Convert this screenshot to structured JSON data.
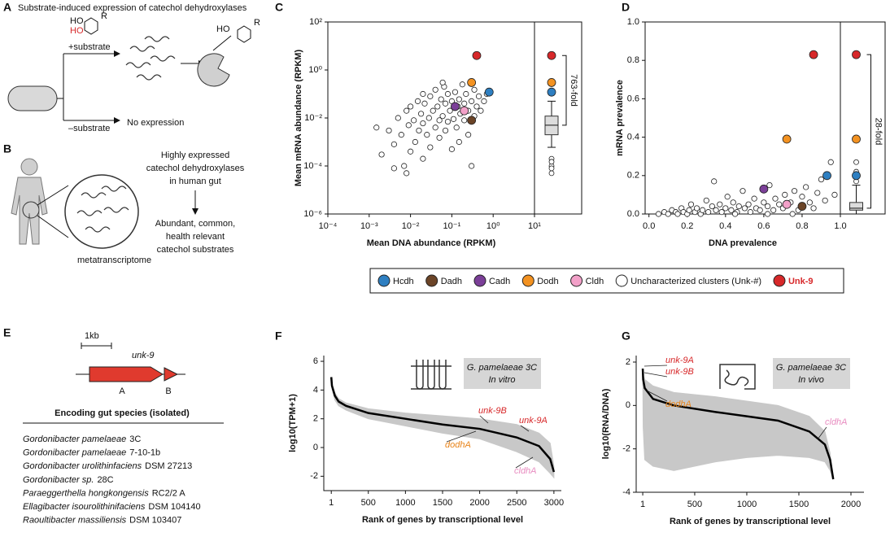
{
  "panel_labels": [
    "A",
    "B",
    "C",
    "D",
    "E",
    "F",
    "G"
  ],
  "panel_a": {
    "title": "Substrate-induced expression of catechol dehydroxylases",
    "plus": "+substrate",
    "minus": "–substrate",
    "no_expression": "No expression",
    "hydroxyl": "HO",
    "group": "R"
  },
  "panel_b": {
    "text1": [
      "Highly expressed",
      "catechol dehydroxylases",
      "in human gut"
    ],
    "text2": [
      "Abundant, common,",
      "health relevant",
      "catechol substrates"
    ],
    "caption": "metatranscriptome"
  },
  "panel_e": {
    "scale": "1kb",
    "gene": "unk-9",
    "parts": [
      "A",
      "B"
    ],
    "heading": "Encoding gut species (isolated)",
    "species": [
      {
        "name": "Gordonibacter pamelaeae",
        "strain": "3C"
      },
      {
        "name": "Gordonibacter pamelaeae",
        "strain": "7-10-1b"
      },
      {
        "name": "Gordonibacter urolithinfaciens",
        "strain": "DSM 27213"
      },
      {
        "name": "Gordonibacter sp.",
        "strain": "28C"
      },
      {
        "name": "Paraeggerthella hongkongensis",
        "strain": "RC2/2 A"
      },
      {
        "name": "Ellagibacter isourolithinifaciens",
        "strain": "DSM 104140"
      },
      {
        "name": "Raoultibacter massiliensis",
        "strain": "DSM 103407"
      }
    ]
  },
  "chart_data": [
    {
      "type": "scatter",
      "x_label": "Mean DNA abundance (RPKM)",
      "y_label": "Mean mRNA abundance (RPKM)",
      "xscale": "log",
      "yscale": "log",
      "xlim": [
        0.0001,
        10
      ],
      "ylim": [
        1e-06,
        100
      ],
      "xticks": [
        {
          "value": 0.0001,
          "label": "10⁻⁴"
        },
        {
          "value": 0.001,
          "label": "10⁻³"
        },
        {
          "value": 0.01,
          "label": "10⁻²"
        },
        {
          "value": 0.1,
          "label": "10⁻¹"
        },
        {
          "value": 1,
          "label": "10⁰"
        },
        {
          "value": 10,
          "label": "10¹"
        }
      ],
      "yticks": [
        {
          "value": 1e-06,
          "label": "10⁻⁶"
        },
        {
          "value": 0.0001,
          "label": "10⁻⁴"
        },
        {
          "value": 0.01,
          "label": "10⁻²"
        },
        {
          "value": 1,
          "label": "10⁰"
        },
        {
          "value": 100,
          "label": "10²"
        }
      ],
      "series": [
        {
          "name": "Hcdh",
          "color": "#2e7fc1",
          "x": [
            0.8
          ],
          "values": [
            0.12
          ]
        },
        {
          "name": "Dadh",
          "color": "#6b4427",
          "x": [
            0.3
          ],
          "values": [
            0.008
          ]
        },
        {
          "name": "Cadh",
          "color": "#7b3f98",
          "x": [
            0.12
          ],
          "values": [
            0.03
          ]
        },
        {
          "name": "Dodh",
          "color": "#f39221",
          "x": [
            0.3
          ],
          "values": [
            0.3
          ]
        },
        {
          "name": "Cldh",
          "color": "#f2a0c8",
          "x": [
            0.2
          ],
          "values": [
            0.02
          ]
        },
        {
          "name": "Uncharacterized clusters (Unk-#)",
          "color": "#ffffff",
          "x": [
            0.002,
            0.003,
            0.004,
            0.005,
            0.006,
            0.007,
            0.008,
            0.009,
            0.01,
            0.01,
            0.012,
            0.013,
            0.015,
            0.016,
            0.018,
            0.02,
            0.02,
            0.022,
            0.025,
            0.028,
            0.03,
            0.03,
            0.035,
            0.04,
            0.04,
            0.045,
            0.05,
            0.05,
            0.055,
            0.06,
            0.065,
            0.07,
            0.07,
            0.08,
            0.08,
            0.09,
            0.1,
            0.1,
            0.11,
            0.12,
            0.13,
            0.14,
            0.15,
            0.16,
            0.18,
            0.2,
            0.2,
            0.22,
            0.25,
            0.25,
            0.3,
            0.3,
            0.35,
            0.35,
            0.4,
            0.45,
            0.5,
            0.6,
            0.7,
            0.008,
            0.004,
            0.0015,
            0.02,
            0.06,
            0.15
          ],
          "values": [
            0.0003,
            0.003,
            0.0008,
            0.01,
            0.002,
            0.0001,
            0.02,
            0.005,
            0.0004,
            0.03,
            0.008,
            0.001,
            0.05,
            0.003,
            0.015,
            0.0002,
            0.006,
            0.04,
            0.002,
            0.01,
            0.08,
            0.0006,
            0.02,
            0.004,
            0.15,
            0.03,
            0.008,
            0.0015,
            0.06,
            0.012,
            0.2,
            0.003,
            0.04,
            0.007,
            0.1,
            0.02,
            0.0005,
            0.05,
            0.009,
            0.12,
            0.004,
            0.03,
            0.06,
            0.015,
            0.25,
            0.008,
            0.04,
            0.1,
            0.002,
            0.02,
            0.05,
            0.0001,
            0.15,
            0.012,
            0.03,
            0.08,
            0.02,
            0.05,
            0.1,
            5e-05,
            8e-05,
            0.004,
            0.1,
            0.3,
            0.001
          ]
        },
        {
          "name": "Unk-9",
          "color": "#d7282a",
          "emphasis": true,
          "x": [
            0.4
          ],
          "values": [
            4
          ]
        }
      ],
      "box": {
        "q1": 0.002,
        "median": 0.005,
        "q3": 0.012,
        "whisker_low": 0.0006,
        "whisker_high": 0.05,
        "outliers": [
          0.0001,
          5e-05,
          8e-05,
          0.0002,
          0.00015
        ],
        "highlights": [
          {
            "color": "#d7282a",
            "value": 4
          },
          {
            "color": "#f39221",
            "value": 0.3
          },
          {
            "color": "#2e7fc1",
            "value": 0.12
          }
        ]
      },
      "bracket_label": "763-fold"
    },
    {
      "type": "scatter",
      "x_label": "DNA prevalence",
      "y_label": "mRNA prevalence",
      "xlim": [
        -0.02,
        1.0
      ],
      "ylim": [
        0,
        1.0
      ],
      "xticks": [
        {
          "value": 0,
          "label": "0.0"
        },
        0.2,
        0.4,
        0.6,
        0.8,
        {
          "value": 1,
          "label": "1.0"
        }
      ],
      "yticks": [
        {
          "value": 0,
          "label": "0.0"
        },
        0.2,
        0.4,
        0.6,
        0.8,
        {
          "value": 1,
          "label": "1.0"
        }
      ],
      "series": [
        {
          "color": "#2e7fc1",
          "x": [
            0.93
          ],
          "values": [
            0.2
          ]
        },
        {
          "color": "#6b4427",
          "x": [
            0.8
          ],
          "values": [
            0.04
          ]
        },
        {
          "color": "#7b3f98",
          "x": [
            0.6
          ],
          "values": [
            0.13
          ]
        },
        {
          "color": "#f39221",
          "x": [
            0.72
          ],
          "values": [
            0.39
          ]
        },
        {
          "color": "#f2a0c8",
          "x": [
            0.72
          ],
          "values": [
            0.05
          ]
        },
        {
          "color": "#ffffff",
          "x": [
            0.05,
            0.08,
            0.1,
            0.12,
            0.14,
            0.15,
            0.17,
            0.18,
            0.2,
            0.21,
            0.22,
            0.24,
            0.25,
            0.27,
            0.28,
            0.3,
            0.31,
            0.33,
            0.34,
            0.35,
            0.37,
            0.38,
            0.4,
            0.41,
            0.43,
            0.44,
            0.46,
            0.47,
            0.49,
            0.5,
            0.52,
            0.53,
            0.55,
            0.56,
            0.58,
            0.6,
            0.62,
            0.63,
            0.65,
            0.66,
            0.68,
            0.7,
            0.71,
            0.74,
            0.76,
            0.78,
            0.8,
            0.82,
            0.84,
            0.86,
            0.88,
            0.9,
            0.92,
            0.95,
            0.97,
            0.45,
            0.62,
            0.75
          ],
          "values": [
            0,
            0.01,
            0,
            0.02,
            0.01,
            0,
            0.03,
            0.01,
            0,
            0.02,
            0.05,
            0.01,
            0.03,
            0,
            0.02,
            0.07,
            0.01,
            0.04,
            0.17,
            0.02,
            0.05,
            0.01,
            0.03,
            0.09,
            0.02,
            0.06,
            0.01,
            0.04,
            0.12,
            0.03,
            0.05,
            0.01,
            0.08,
            0.03,
            0.02,
            0.06,
            0.04,
            0.15,
            0.02,
            0.08,
            0.05,
            0.03,
            0.1,
            0.06,
            0.12,
            0.02,
            0.09,
            0.14,
            0.06,
            0.03,
            0.11,
            0.18,
            0.07,
            0.27,
            0.1,
            0,
            0,
            0
          ]
        },
        {
          "color": "#d7282a",
          "x": [
            0.86
          ],
          "values": [
            0.83
          ]
        }
      ],
      "box": {
        "q1": 0.02,
        "median": 0.03,
        "q3": 0.06,
        "whisker_low": 0,
        "whisker_high": 0.15,
        "outliers": [
          0.17,
          0.22,
          0.27
        ],
        "highlights": [
          {
            "color": "#d7282a",
            "value": 0.83
          },
          {
            "color": "#f39221",
            "value": 0.39
          },
          {
            "color": "#2e7fc1",
            "value": 0.2
          }
        ]
      },
      "bracket_label": "28-fold"
    },
    {
      "type": "line",
      "x_label": "Rank of genes by transcriptional level",
      "y_label": "log10(TPM+1)",
      "xlim": [
        -100,
        3100
      ],
      "ylim": [
        -3,
        6.4
      ],
      "xticks": [
        1,
        500,
        1000,
        1500,
        2000,
        2500,
        3000
      ],
      "yticks": [
        -2,
        0,
        2,
        4,
        6
      ],
      "color": "#000000",
      "x": [
        1,
        10,
        50,
        100,
        200,
        500,
        1000,
        1500,
        2000,
        2500,
        2800,
        2950,
        3000
      ],
      "values": [
        4.9,
        4.3,
        3.6,
        3.2,
        2.9,
        2.4,
        2.0,
        1.6,
        1.3,
        0.7,
        0.1,
        -0.8,
        -1.7
      ],
      "band": {
        "color": "#c8c8c8",
        "x": [
          1,
          10,
          50,
          100,
          200,
          500,
          1000,
          1500,
          2000,
          2500,
          2800,
          2950,
          3000
        ],
        "high": [
          4.9,
          4.4,
          3.8,
          3.4,
          3.1,
          2.7,
          2.4,
          2.2,
          2.0,
          1.6,
          1.0,
          0.3,
          -1.3
        ],
        "low": [
          4.9,
          4.1,
          3.3,
          2.9,
          2.6,
          2.0,
          1.5,
          1.0,
          0.6,
          -0.3,
          -1.0,
          -1.8,
          -2.1
        ]
      },
      "sample": {
        "species": "G. pamelaeae 3C",
        "condition": "In vitro"
      },
      "annotations": [
        {
          "text": "unk-9B",
          "color": "#d7282a"
        },
        {
          "text": "unk-9A",
          "color": "#d7282a"
        },
        {
          "text": "dodhA",
          "color": "#e8841a"
        },
        {
          "text": "cldhA",
          "color": "#e88cc0"
        }
      ]
    },
    {
      "type": "line",
      "x_label": "Rank of genes by transcriptional level",
      "y_label": "log10(RNA/DNA)",
      "xlim": [
        -62,
        2125
      ],
      "ylim": [
        -4,
        2.3
      ],
      "xticks": [
        1,
        500,
        1000,
        1500,
        2000
      ],
      "yticks": [
        -4,
        -2,
        0,
        2
      ],
      "color": "#000000",
      "x": [
        1,
        5,
        20,
        100,
        300,
        700,
        1000,
        1300,
        1600,
        1750,
        1800,
        1830
      ],
      "values": [
        1.7,
        1.2,
        0.8,
        0.3,
        0.0,
        -0.3,
        -0.5,
        -0.7,
        -1.2,
        -1.8,
        -2.5,
        -3.4
      ],
      "band": {
        "color": "#c8c8c8",
        "x": [
          1,
          5,
          20,
          100,
          300,
          700,
          1000,
          1300,
          1600,
          1750,
          1800,
          1830
        ],
        "high": [
          1.7,
          1.4,
          1.2,
          0.9,
          0.6,
          0.4,
          0.2,
          0.0,
          -0.5,
          -1.2,
          -2.2,
          -3.4
        ],
        "low": [
          1.7,
          -1.0,
          -2.5,
          -2.8,
          -3.0,
          -2.6,
          -2.4,
          -2.3,
          -2.4,
          -2.6,
          -3.0,
          -3.4
        ]
      },
      "sample": {
        "species": "G. pamelaeae 3C",
        "condition": "In vivo"
      },
      "annotations": [
        {
          "text": "unk-9A",
          "color": "#d7282a"
        },
        {
          "text": "unk-9B",
          "color": "#d7282a"
        },
        {
          "text": "dodhA",
          "color": "#e8841a"
        },
        {
          "text": "cldhA",
          "color": "#e88cc0"
        }
      ]
    }
  ]
}
